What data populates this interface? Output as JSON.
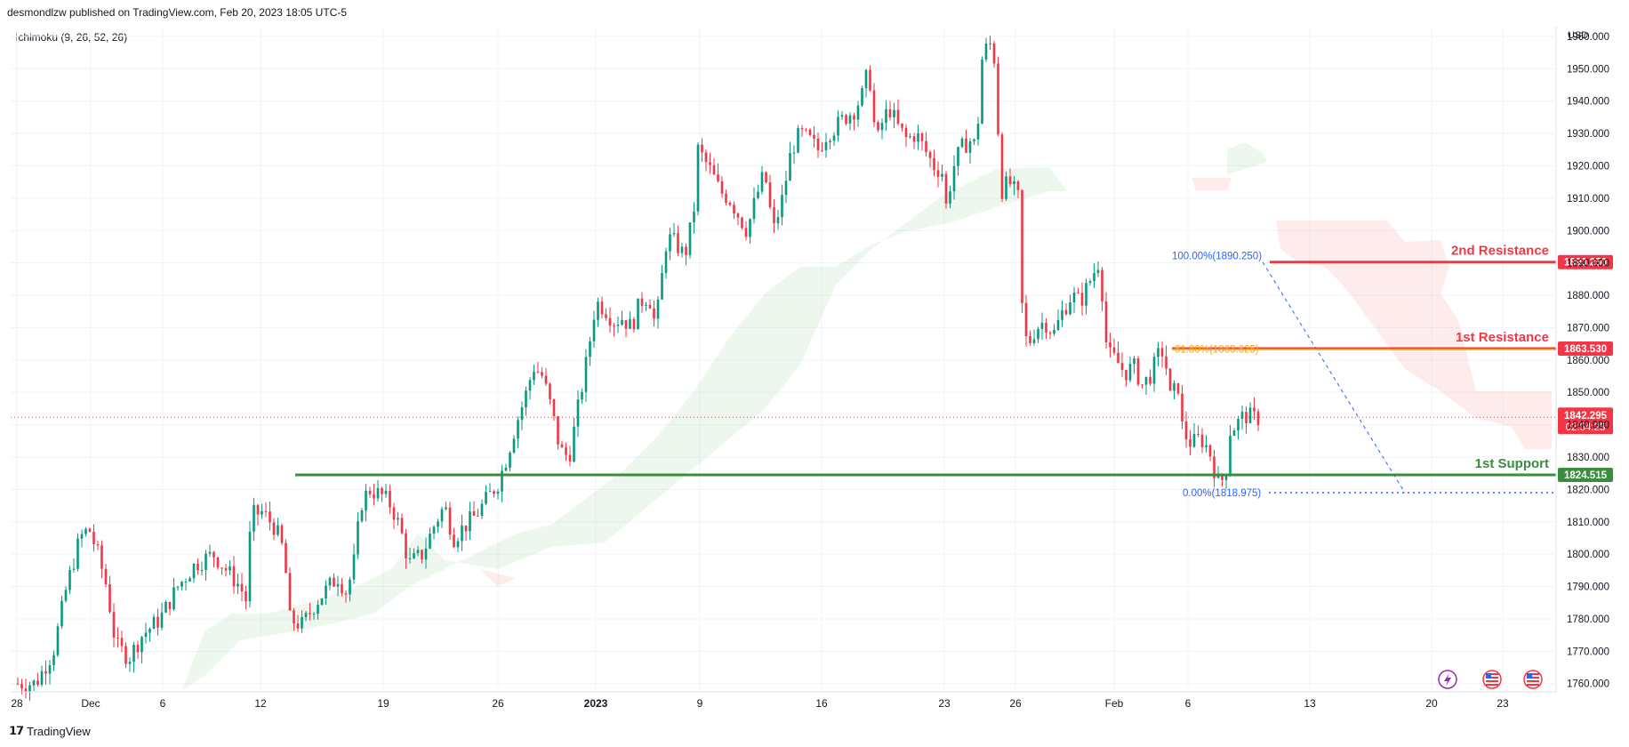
{
  "header": {
    "publish_line": "desmondlzw published on TradingView.com, Feb 20, 2023 18:05 UTC-5",
    "indicator": "Ichimoku (9, 26, 52, 26)",
    "currency": "USD",
    "brand": "TradingView"
  },
  "chart_data": {
    "type": "candlestick",
    "ylim": [
      1758,
      1963
    ],
    "y_ticks": [
      1760,
      1770,
      1780,
      1790,
      1800,
      1810,
      1820,
      1830,
      1840,
      1850,
      1860,
      1870,
      1880,
      1890,
      1900,
      1910,
      1920,
      1930,
      1940,
      1950,
      1960
    ],
    "y_tick_labels": [
      "1760.000",
      "1770.000",
      "1780.000",
      "1790.000",
      "1800.000",
      "1810.000",
      "1820.000",
      "1830.000",
      "1840.000",
      "1850.000",
      "1860.000",
      "1870.000",
      "1880.000",
      "1890.000",
      "1900.000",
      "1910.000",
      "1920.000",
      "1930.000",
      "1940.000",
      "1950.000",
      "1960.000"
    ],
    "x_ticks": [
      {
        "label": "28",
        "bold": false
      },
      {
        "label": "Dec",
        "bold": false
      },
      {
        "label": "6",
        "bold": false
      },
      {
        "label": "12",
        "bold": false
      },
      {
        "label": "19",
        "bold": false
      },
      {
        "label": "26",
        "bold": false
      },
      {
        "label": "2023",
        "bold": true
      },
      {
        "label": "9",
        "bold": false
      },
      {
        "label": "16",
        "bold": false
      },
      {
        "label": "23",
        "bold": false
      },
      {
        "label": "26",
        "bold": false
      },
      {
        "label": "Feb",
        "bold": false
      },
      {
        "label": "6",
        "bold": false
      },
      {
        "label": "13",
        "bold": false
      },
      {
        "label": "20",
        "bold": false
      },
      {
        "label": "23",
        "bold": false
      }
    ],
    "price_path": [
      [
        0,
        1760
      ],
      [
        20,
        1760
      ],
      [
        40,
        1770
      ],
      [
        55,
        1790
      ],
      [
        70,
        1805
      ],
      [
        80,
        1808
      ],
      [
        90,
        1800
      ],
      [
        100,
        1790
      ],
      [
        110,
        1772
      ],
      [
        125,
        1768
      ],
      [
        140,
        1775
      ],
      [
        160,
        1780
      ],
      [
        180,
        1790
      ],
      [
        200,
        1797
      ],
      [
        220,
        1800
      ],
      [
        235,
        1795
      ],
      [
        250,
        1790
      ],
      [
        258,
        1785
      ],
      [
        262,
        1812
      ],
      [
        275,
        1813
      ],
      [
        290,
        1808
      ],
      [
        300,
        1800
      ],
      [
        305,
        1780
      ],
      [
        320,
        1778
      ],
      [
        335,
        1785
      ],
      [
        350,
        1790
      ],
      [
        360,
        1793
      ],
      [
        370,
        1788
      ],
      [
        380,
        1800
      ],
      [
        385,
        1815
      ],
      [
        395,
        1820
      ],
      [
        410,
        1818
      ],
      [
        420,
        1815
      ],
      [
        430,
        1808
      ],
      [
        440,
        1797
      ],
      [
        455,
        1800
      ],
      [
        470,
        1810
      ],
      [
        480,
        1815
      ],
      [
        490,
        1805
      ],
      [
        500,
        1808
      ],
      [
        515,
        1812
      ],
      [
        530,
        1818
      ],
      [
        540,
        1822
      ],
      [
        550,
        1830
      ],
      [
        560,
        1840
      ],
      [
        570,
        1848
      ],
      [
        580,
        1858
      ],
      [
        590,
        1855
      ],
      [
        600,
        1845
      ],
      [
        610,
        1832
      ],
      [
        620,
        1830
      ],
      [
        630,
        1845
      ],
      [
        640,
        1860
      ],
      [
        650,
        1878
      ],
      [
        660,
        1876
      ],
      [
        670,
        1872
      ],
      [
        680,
        1873
      ],
      [
        690,
        1870
      ],
      [
        700,
        1878
      ],
      [
        710,
        1880
      ],
      [
        715,
        1872
      ],
      [
        720,
        1876
      ],
      [
        730,
        1898
      ],
      [
        740,
        1896
      ],
      [
        750,
        1892
      ],
      [
        760,
        1905
      ],
      [
        765,
        1925
      ],
      [
        780,
        1918
      ],
      [
        790,
        1912
      ],
      [
        800,
        1910
      ],
      [
        810,
        1905
      ],
      [
        820,
        1900
      ],
      [
        830,
        1910
      ],
      [
        840,
        1918
      ],
      [
        845,
        1908
      ],
      [
        850,
        1900
      ],
      [
        860,
        1910
      ],
      [
        870,
        1925
      ],
      [
        880,
        1930
      ],
      [
        890,
        1928
      ],
      [
        900,
        1925
      ],
      [
        910,
        1930
      ],
      [
        920,
        1932
      ],
      [
        930,
        1935
      ],
      [
        940,
        1937
      ],
      [
        950,
        1942
      ],
      [
        955,
        1948
      ],
      [
        960,
        1945
      ],
      [
        965,
        1925
      ],
      [
        970,
        1932
      ],
      [
        980,
        1938
      ],
      [
        990,
        1932
      ],
      [
        1000,
        1928
      ],
      [
        1010,
        1930
      ],
      [
        1020,
        1925
      ],
      [
        1030,
        1920
      ],
      [
        1040,
        1918
      ],
      [
        1045,
        1905
      ],
      [
        1050,
        1918
      ],
      [
        1060,
        1925
      ],
      [
        1070,
        1928
      ],
      [
        1078,
        1926
      ],
      [
        1085,
        1955
      ],
      [
        1095,
        1958
      ],
      [
        1100,
        1950
      ],
      [
        1102,
        1935
      ],
      [
        1105,
        1912
      ],
      [
        1115,
        1915
      ],
      [
        1125,
        1910
      ],
      [
        1128,
        1880
      ],
      [
        1135,
        1864
      ],
      [
        1145,
        1870
      ],
      [
        1155,
        1872
      ],
      [
        1165,
        1868
      ],
      [
        1175,
        1875
      ],
      [
        1185,
        1880
      ],
      [
        1195,
        1878
      ],
      [
        1205,
        1884
      ],
      [
        1215,
        1890
      ],
      [
        1220,
        1880
      ],
      [
        1225,
        1862
      ],
      [
        1235,
        1860
      ],
      [
        1245,
        1856
      ],
      [
        1255,
        1858
      ],
      [
        1265,
        1852
      ],
      [
        1275,
        1856
      ],
      [
        1285,
        1863
      ],
      [
        1290,
        1862
      ],
      [
        1295,
        1848
      ],
      [
        1305,
        1852
      ],
      [
        1310,
        1838
      ],
      [
        1320,
        1834
      ],
      [
        1330,
        1836
      ],
      [
        1340,
        1832
      ],
      [
        1350,
        1822
      ],
      [
        1358,
        1824
      ],
      [
        1363,
        1838
      ],
      [
        1370,
        1840
      ],
      [
        1380,
        1843
      ],
      [
        1390,
        1842
      ],
      [
        1395,
        1842
      ]
    ],
    "current_price": 1842.295,
    "countdown": "02:54:23",
    "levels": [
      {
        "name": "2nd Resistance",
        "value": 1890.25,
        "label": "1890.250",
        "color": "#f23645"
      },
      {
        "name": "1st Resistance",
        "value": 1863.53,
        "label": "1863.530",
        "color": "#f23645"
      },
      {
        "name": "1st Support",
        "value": 1824.515,
        "label": "1824.515",
        "color": "#388e3c"
      }
    ],
    "fib": [
      {
        "text": "100.00%(1890.250)",
        "value": 1890.25,
        "color": "#2962ff"
      },
      {
        "text": "61.80%(1863.625)",
        "value": 1863.625,
        "color": "#f7a21b"
      },
      {
        "text": "0.00%(1818.975)",
        "value": 1818.975,
        "color": "#2962ff"
      }
    ]
  },
  "colors": {
    "up": "#089981",
    "down": "#f23645",
    "support": "#388e3c",
    "resistance": "#f23645",
    "cloud_bull": "rgba(76,175,80,0.10)",
    "cloud_bear": "rgba(242,54,69,0.10)",
    "grid": "#f0f3fa"
  },
  "icons": [
    "lightning-icon",
    "us-flag-icon",
    "us-flag-icon"
  ]
}
